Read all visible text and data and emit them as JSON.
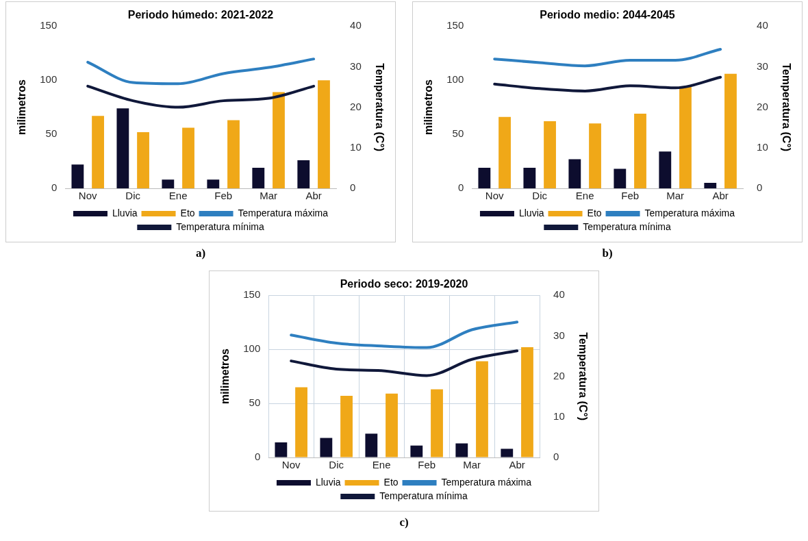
{
  "chart_data": [
    {
      "type": "bar",
      "title": "Periodo húmedo: 2021-2022",
      "ylabel": "milimetros",
      "y2label": "Temperatura (C°)",
      "categories": [
        "Nov",
        "Dic",
        "Ene",
        "Feb",
        "Mar",
        "Abr"
      ],
      "ylim": [
        0,
        150
      ],
      "yticks": [
        0,
        50,
        100,
        150
      ],
      "y2lim": [
        0,
        40
      ],
      "y2ticks": [
        0,
        10,
        20,
        30,
        40
      ],
      "grid": false,
      "legend": "bottom",
      "marker": "none",
      "annotations": [
        "a)"
      ],
      "series": [
        {
          "name": "Lluvia",
          "color": "#0d0d2e",
          "values": [
            22,
            74,
            8,
            8,
            19,
            26
          ]
        },
        {
          "name": "Eto",
          "color": "#f0a818",
          "values": [
            67,
            52,
            56,
            63,
            89,
            100
          ]
        },
        {
          "name": "Temperatura máxima",
          "type": "line",
          "axis": "y2",
          "color": "#2e7fc0",
          "values": [
            31.1,
            26.1,
            25.8,
            28.3,
            29.8,
            31.9
          ]
        },
        {
          "name": "Temperatura mínima",
          "type": "line",
          "axis": "y2",
          "color": "#10183a",
          "values": [
            25.2,
            21.6,
            20,
            21.6,
            22.2,
            25.2
          ]
        }
      ]
    },
    {
      "type": "bar",
      "title": "Periodo medio: 2044-2045",
      "ylabel": "milimetros",
      "y2label": "Temperatura (C°)",
      "categories": [
        "Nov",
        "Dic",
        "Ene",
        "Feb",
        "Mar",
        "Abr"
      ],
      "ylim": [
        0,
        150
      ],
      "yticks": [
        0,
        50,
        100,
        150
      ],
      "y2lim": [
        0,
        40
      ],
      "y2ticks": [
        0,
        10,
        20,
        30,
        40
      ],
      "grid": false,
      "legend": "bottom",
      "marker": "none",
      "annotations": [
        "b)"
      ],
      "series": [
        {
          "name": "Lluvia",
          "color": "#0d0d2e",
          "values": [
            19,
            19,
            27,
            18,
            34,
            5
          ]
        },
        {
          "name": "Eto",
          "color": "#f0a818",
          "values": [
            66,
            62,
            60,
            69,
            94,
            106
          ]
        },
        {
          "name": "Temperatura máxima",
          "type": "line",
          "axis": "y2",
          "color": "#2e7fc0",
          "values": [
            31.9,
            31,
            30.2,
            31.6,
            31.6,
            34.3
          ]
        },
        {
          "name": "Temperatura mínima",
          "type": "line",
          "axis": "y2",
          "color": "#10183a",
          "values": [
            25.7,
            24.6,
            24,
            25.3,
            24.8,
            27.4
          ]
        }
      ]
    },
    {
      "type": "bar",
      "title": "Periodo seco: 2019-2020",
      "ylabel": "milimetros",
      "y2label": "Temperatura (C°)",
      "categories": [
        "Nov",
        "Dic",
        "Ene",
        "Feb",
        "Mar",
        "Abr"
      ],
      "ylim": [
        0,
        150
      ],
      "yticks": [
        0,
        50,
        100,
        150
      ],
      "y2lim": [
        0,
        40
      ],
      "y2ticks": [
        0,
        10,
        20,
        30,
        40
      ],
      "grid": true,
      "legend": "bottom",
      "marker": "none",
      "annotations": [
        "c)"
      ],
      "series": [
        {
          "name": "Lluvia",
          "color": "#0d0d2e",
          "values": [
            14,
            18,
            22,
            11,
            13,
            8
          ]
        },
        {
          "name": "Eto",
          "color": "#f0a818",
          "values": [
            65,
            57,
            59,
            63,
            89,
            102
          ]
        },
        {
          "name": "Temperatura máxima",
          "type": "line",
          "axis": "y2",
          "color": "#2e7fc0",
          "values": [
            30.2,
            28.2,
            27.5,
            27.1,
            31.5,
            33.4
          ]
        },
        {
          "name": "Temperatura mínima",
          "type": "line",
          "axis": "y2",
          "color": "#10183a",
          "values": [
            23.8,
            21.8,
            21.4,
            20.2,
            24.2,
            26.3
          ]
        }
      ]
    }
  ]
}
